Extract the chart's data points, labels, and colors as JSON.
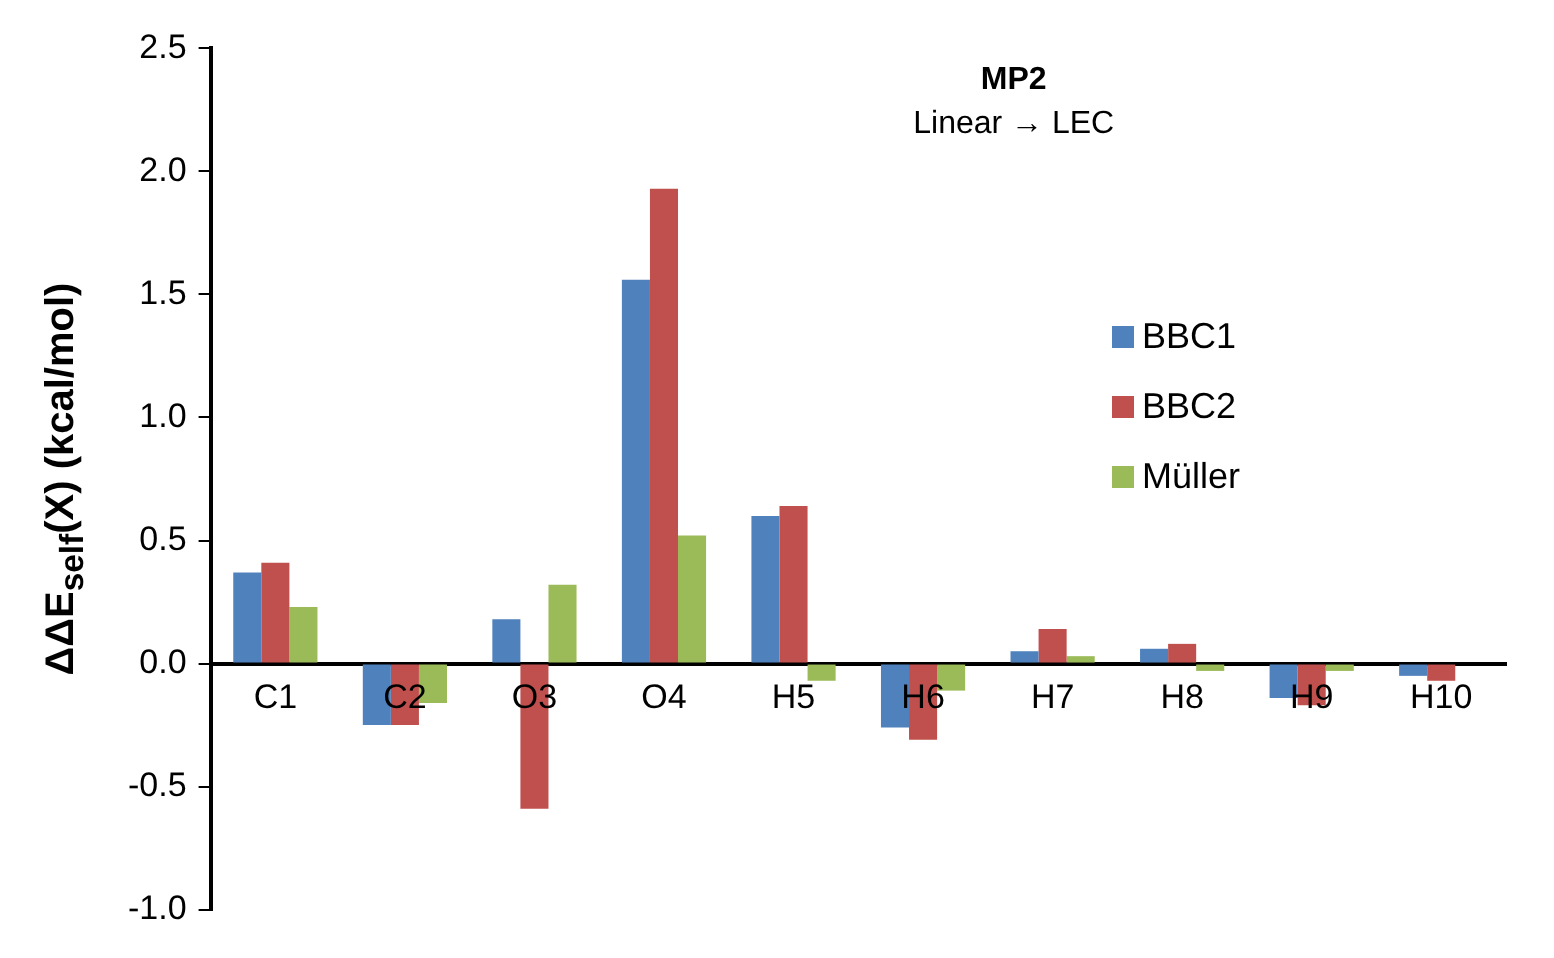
{
  "chart_data": {
    "type": "bar",
    "title": "MP2",
    "subtitle": "Linear → LEC",
    "ylabel": "ΔΔE$_{self}$(X)  (kcal/mol)",
    "categories": [
      "C1",
      "C2",
      "O3",
      "O4",
      "H5",
      "H6",
      "H7",
      "H8",
      "H9",
      "H10"
    ],
    "series": [
      {
        "name": "BBC1",
        "color": "#4f81bd",
        "values": [
          0.37,
          -0.25,
          0.18,
          1.56,
          0.6,
          -0.26,
          0.05,
          0.06,
          -0.14,
          -0.05
        ]
      },
      {
        "name": "BBC2",
        "color": "#c0504d",
        "values": [
          0.41,
          -0.25,
          -0.59,
          1.93,
          0.64,
          -0.31,
          0.14,
          0.08,
          -0.17,
          -0.07
        ]
      },
      {
        "name": "Müller",
        "color": "#9bbb59",
        "values": [
          0.23,
          -0.16,
          0.32,
          0.52,
          -0.07,
          -0.11,
          0.03,
          -0.03,
          -0.03,
          0
        ]
      }
    ],
    "ylim": [
      -1,
      2.5
    ],
    "yticks": [
      {
        "value": -1,
        "label": "-1.0"
      },
      {
        "value": -0.5,
        "label": "-0.5"
      },
      {
        "value": 0,
        "label": "0.0"
      },
      {
        "value": 0.5,
        "label": "0.5"
      },
      {
        "value": 1,
        "label": "1.0"
      },
      {
        "value": 1.5,
        "label": "1.5"
      },
      {
        "value": 2,
        "label": "2.0"
      },
      {
        "value": 2.5,
        "label": "2.5"
      }
    ],
    "grid": false,
    "legend": "right"
  }
}
